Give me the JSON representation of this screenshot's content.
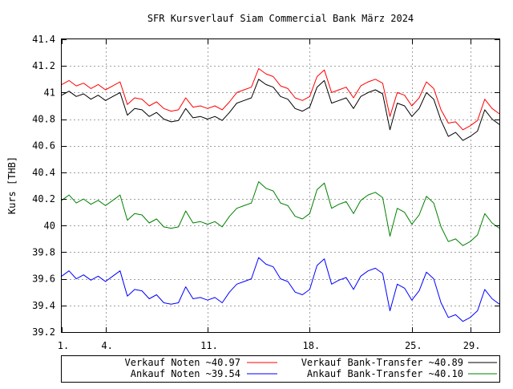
{
  "chart_data": {
    "type": "line",
    "title": "SFR Kursverlauf Siam Commercial Bank März 2024",
    "ylabel": "Kurs [THB]",
    "xlabel": "",
    "ylim": [
      39.2,
      41.4
    ],
    "xlim": [
      1,
      31
    ],
    "yticks": [
      39.2,
      39.4,
      39.6,
      39.8,
      40,
      40.2,
      40.4,
      40.6,
      40.8,
      41,
      41.2,
      41.4
    ],
    "ytick_labels": [
      "39.2",
      "39.4",
      "39.6",
      "39.8",
      "40",
      "40.2",
      "40.4",
      "40.6",
      "40.8",
      "41",
      "41.2",
      "41.4"
    ],
    "xticks": [
      1,
      4,
      11,
      18,
      25,
      29
    ],
    "xtick_labels": [
      "1.",
      "4.",
      "11.",
      "18.",
      "25.",
      "29."
    ],
    "grid": true,
    "legend_position": "bottom",
    "series": [
      {
        "name": "Verkauf Noten ~40.97",
        "color": "#ff0000",
        "x": [
          1,
          1.5,
          2,
          2.5,
          3,
          3.5,
          4,
          4.5,
          5,
          5.5,
          6,
          6.5,
          7,
          7.5,
          8,
          8.5,
          9,
          9.5,
          10,
          10.5,
          11,
          11.5,
          12,
          12.5,
          13,
          13.5,
          14,
          14.5,
          15,
          15.5,
          16,
          16.5,
          17,
          17.5,
          18,
          18.5,
          19,
          19.5,
          20,
          20.5,
          21,
          21.5,
          22,
          22.5,
          23,
          23.5,
          24,
          24.5,
          25,
          25.5,
          26,
          26.5,
          27,
          27.5,
          28,
          28.5,
          29,
          29.5,
          30,
          30.5,
          31
        ],
        "values": [
          41.06,
          41.09,
          41.05,
          41.07,
          41.03,
          41.06,
          41.02,
          41.05,
          41.08,
          40.91,
          40.96,
          40.95,
          40.9,
          40.93,
          40.88,
          40.86,
          40.87,
          40.96,
          40.89,
          40.9,
          40.88,
          40.9,
          40.87,
          40.93,
          41.0,
          41.02,
          41.04,
          41.18,
          41.14,
          41.12,
          41.05,
          41.03,
          40.96,
          40.94,
          40.97,
          41.12,
          41.17,
          41.0,
          41.02,
          41.04,
          40.96,
          41.05,
          41.08,
          41.1,
          41.07,
          40.82,
          41.0,
          40.98,
          40.9,
          40.96,
          41.08,
          41.03,
          40.87,
          40.77,
          40.78,
          40.72,
          40.75,
          40.79,
          40.95,
          40.88,
          40.84
        ]
      },
      {
        "name": "Verkauf Bank-Transfer ~40.89",
        "color": "#000000",
        "x": [
          1,
          1.5,
          2,
          2.5,
          3,
          3.5,
          4,
          4.5,
          5,
          5.5,
          6,
          6.5,
          7,
          7.5,
          8,
          8.5,
          9,
          9.5,
          10,
          10.5,
          11,
          11.5,
          12,
          12.5,
          13,
          13.5,
          14,
          14.5,
          15,
          15.5,
          16,
          16.5,
          17,
          17.5,
          18,
          18.5,
          19,
          19.5,
          20,
          20.5,
          21,
          21.5,
          22,
          22.5,
          23,
          23.5,
          24,
          24.5,
          25,
          25.5,
          26,
          26.5,
          27,
          27.5,
          28,
          28.5,
          29,
          29.5,
          30,
          30.5,
          31
        ],
        "values": [
          40.98,
          41.01,
          40.97,
          40.99,
          40.95,
          40.98,
          40.94,
          40.97,
          41.0,
          40.83,
          40.88,
          40.87,
          40.82,
          40.85,
          40.8,
          40.78,
          40.79,
          40.88,
          40.81,
          40.82,
          40.8,
          40.82,
          40.79,
          40.85,
          40.92,
          40.94,
          40.96,
          41.1,
          41.06,
          41.04,
          40.97,
          40.95,
          40.88,
          40.86,
          40.89,
          41.04,
          41.09,
          40.92,
          40.94,
          40.96,
          40.88,
          40.97,
          41.0,
          41.02,
          40.99,
          40.72,
          40.92,
          40.9,
          40.82,
          40.88,
          41.0,
          40.95,
          40.79,
          40.67,
          40.7,
          40.64,
          40.67,
          40.71,
          40.87,
          40.8,
          40.76
        ]
      },
      {
        "name": "Ankauf Noten ~39.54",
        "color": "#0000ff",
        "x": [
          1,
          1.5,
          2,
          2.5,
          3,
          3.5,
          4,
          4.5,
          5,
          5.5,
          6,
          6.5,
          7,
          7.5,
          8,
          8.5,
          9,
          9.5,
          10,
          10.5,
          11,
          11.5,
          12,
          12.5,
          13,
          13.5,
          14,
          14.5,
          15,
          15.5,
          16,
          16.5,
          17,
          17.5,
          18,
          18.5,
          19,
          19.5,
          20,
          20.5,
          21,
          21.5,
          22,
          22.5,
          23,
          23.5,
          24,
          24.5,
          25,
          25.5,
          26,
          26.5,
          27,
          27.5,
          28,
          28.5,
          29,
          29.5,
          30,
          30.5,
          31
        ],
        "values": [
          39.62,
          39.66,
          39.6,
          39.63,
          39.59,
          39.62,
          39.58,
          39.62,
          39.66,
          39.47,
          39.52,
          39.51,
          39.45,
          39.48,
          39.42,
          39.41,
          39.42,
          39.54,
          39.45,
          39.46,
          39.44,
          39.46,
          39.42,
          39.5,
          39.56,
          39.58,
          39.6,
          39.76,
          39.71,
          39.69,
          39.6,
          39.58,
          39.5,
          39.48,
          39.52,
          39.7,
          39.75,
          39.56,
          39.59,
          39.61,
          39.52,
          39.62,
          39.66,
          39.68,
          39.64,
          39.36,
          39.56,
          39.53,
          39.44,
          39.51,
          39.65,
          39.6,
          39.42,
          39.31,
          39.33,
          39.28,
          39.31,
          39.36,
          39.52,
          39.45,
          39.41
        ]
      },
      {
        "name": "Ankauf Bank-Transfer ~40.10",
        "color": "#008000",
        "x": [
          1,
          1.5,
          2,
          2.5,
          3,
          3.5,
          4,
          4.5,
          5,
          5.5,
          6,
          6.5,
          7,
          7.5,
          8,
          8.5,
          9,
          9.5,
          10,
          10.5,
          11,
          11.5,
          12,
          12.5,
          13,
          13.5,
          14,
          14.5,
          15,
          15.5,
          16,
          16.5,
          17,
          17.5,
          18,
          18.5,
          19,
          19.5,
          20,
          20.5,
          21,
          21.5,
          22,
          22.5,
          23,
          23.5,
          24,
          24.5,
          25,
          25.5,
          26,
          26.5,
          27,
          27.5,
          28,
          28.5,
          29,
          29.5,
          30,
          30.5,
          31
        ],
        "values": [
          40.19,
          40.23,
          40.17,
          40.2,
          40.16,
          40.19,
          40.15,
          40.19,
          40.23,
          40.04,
          40.09,
          40.08,
          40.02,
          40.05,
          39.99,
          39.98,
          39.99,
          40.11,
          40.02,
          40.03,
          40.01,
          40.03,
          39.99,
          40.07,
          40.13,
          40.15,
          40.17,
          40.33,
          40.28,
          40.26,
          40.17,
          40.15,
          40.07,
          40.05,
          40.09,
          40.27,
          40.32,
          40.13,
          40.16,
          40.18,
          40.09,
          40.19,
          40.23,
          40.25,
          40.21,
          39.92,
          40.13,
          40.1,
          40.01,
          40.08,
          40.22,
          40.17,
          39.99,
          39.88,
          39.9,
          39.85,
          39.88,
          39.93,
          40.09,
          40.02,
          39.98
        ]
      }
    ]
  }
}
